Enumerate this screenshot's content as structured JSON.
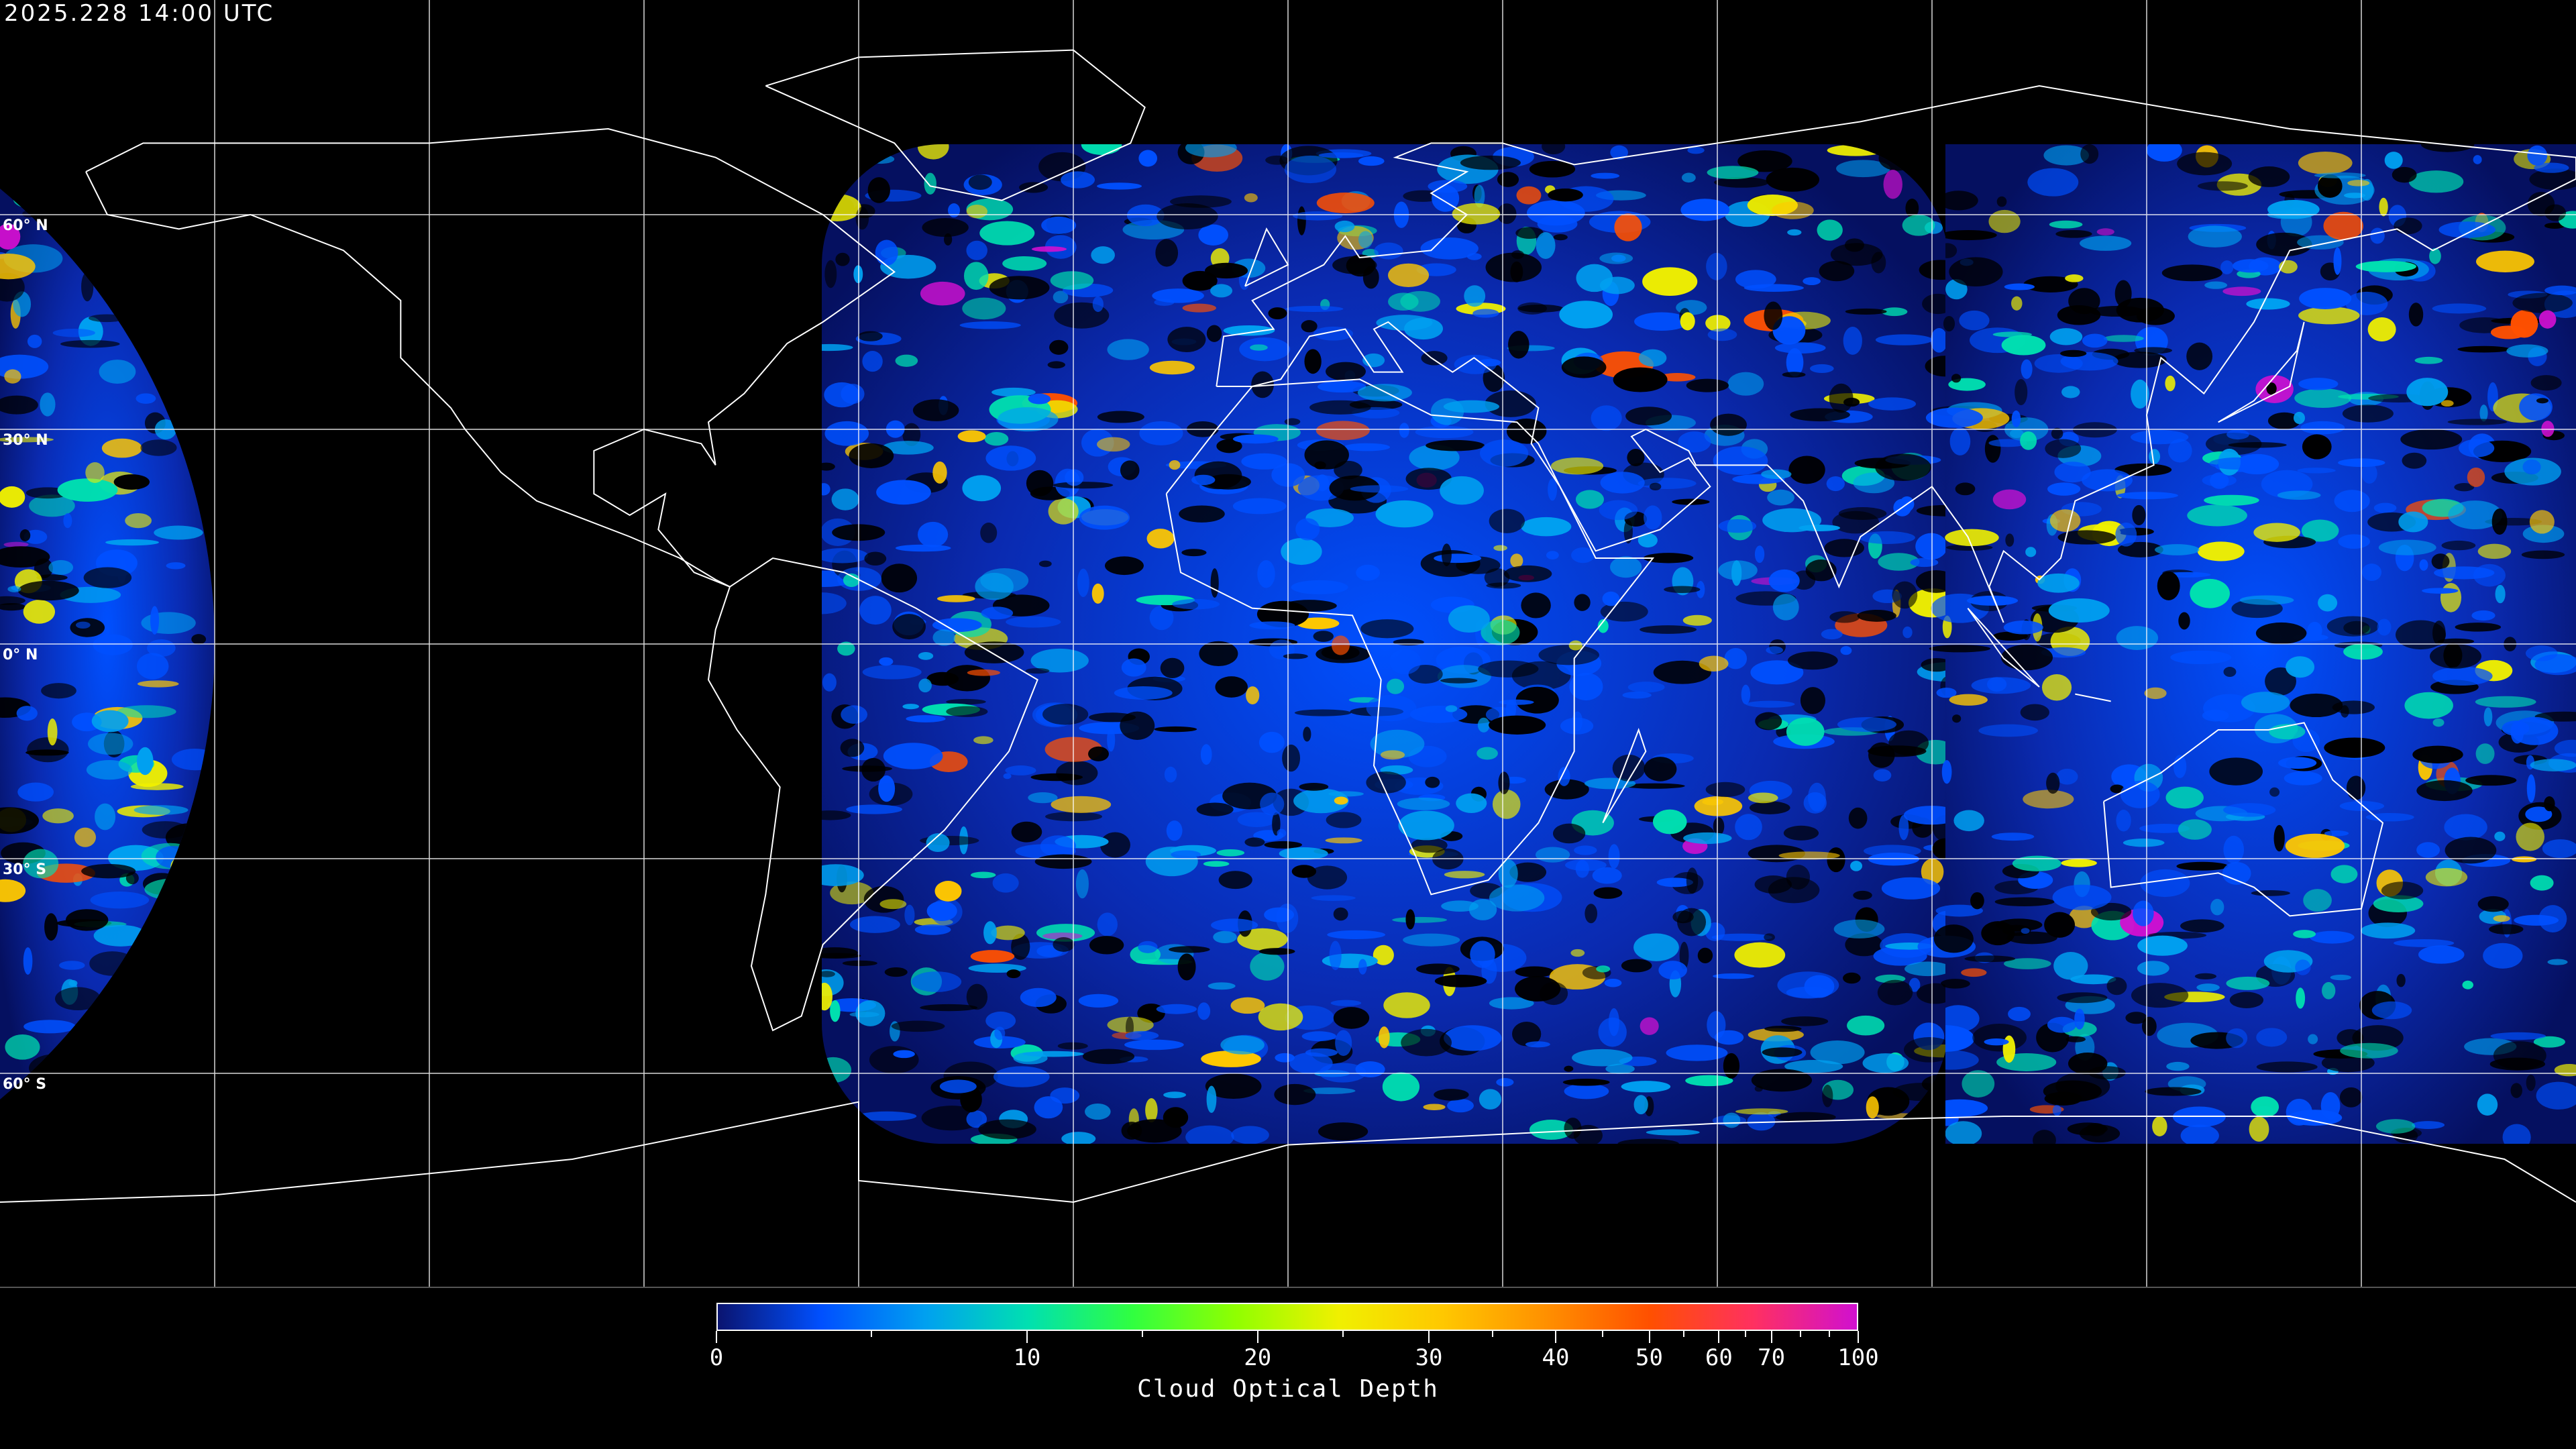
{
  "timestamp": "2025.228 14:00 UTC",
  "map": {
    "projection": "equirectangular",
    "graticule_spacing_deg": 30,
    "lat_labels": [
      {
        "lat": 60,
        "text": "60° N"
      },
      {
        "lat": 30,
        "text": "30° N"
      },
      {
        "lat": 0,
        "text": "0° N"
      },
      {
        "lat": -30,
        "text": "30° S"
      },
      {
        "lat": -60,
        "text": "60° S"
      }
    ],
    "coastline_color": "#ffffff",
    "grid_color": "#ffffff",
    "background": "#000000"
  },
  "colorbar": {
    "title": "Cloud Optical Depth",
    "range": [
      0,
      100
    ],
    "major_ticks": [
      {
        "value": 0,
        "label": "0"
      },
      {
        "value": 10,
        "label": "10"
      },
      {
        "value": 20,
        "label": "20"
      },
      {
        "value": 30,
        "label": "30"
      },
      {
        "value": 40,
        "label": "40"
      },
      {
        "value": 50,
        "label": "50"
      },
      {
        "value": 60,
        "label": "60"
      },
      {
        "value": 70,
        "label": "70"
      },
      {
        "value": 100,
        "label": "100"
      }
    ],
    "minor_ticks": [
      5,
      15,
      25,
      35,
      45,
      55,
      65,
      80,
      90
    ],
    "colors": [
      "#0a1470",
      "#0050ff",
      "#00a0f0",
      "#00e0b0",
      "#30ff40",
      "#90ff00",
      "#f0f000",
      "#ffc800",
      "#ff9000",
      "#ff5000",
      "#ff3060",
      "#d010d0"
    ]
  }
}
